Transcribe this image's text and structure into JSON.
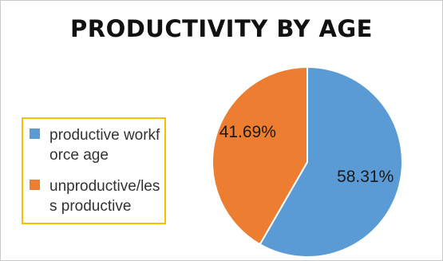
{
  "chart_data": {
    "type": "pie",
    "title": "PRODUCTIVITY BY AGE",
    "categories": [
      "productive workforce age",
      "unproductive/less productive"
    ],
    "values": [
      58.31,
      41.69
    ],
    "data_labels": [
      "58.31%",
      "41.69%"
    ],
    "legend_entries": [
      "productive workforce age",
      "unproductive/less productive"
    ],
    "colors": [
      "#5b9bd5",
      "#ed7d31"
    ],
    "legend_placement": "left",
    "start_angle": "12 o'clock, clockwise"
  }
}
